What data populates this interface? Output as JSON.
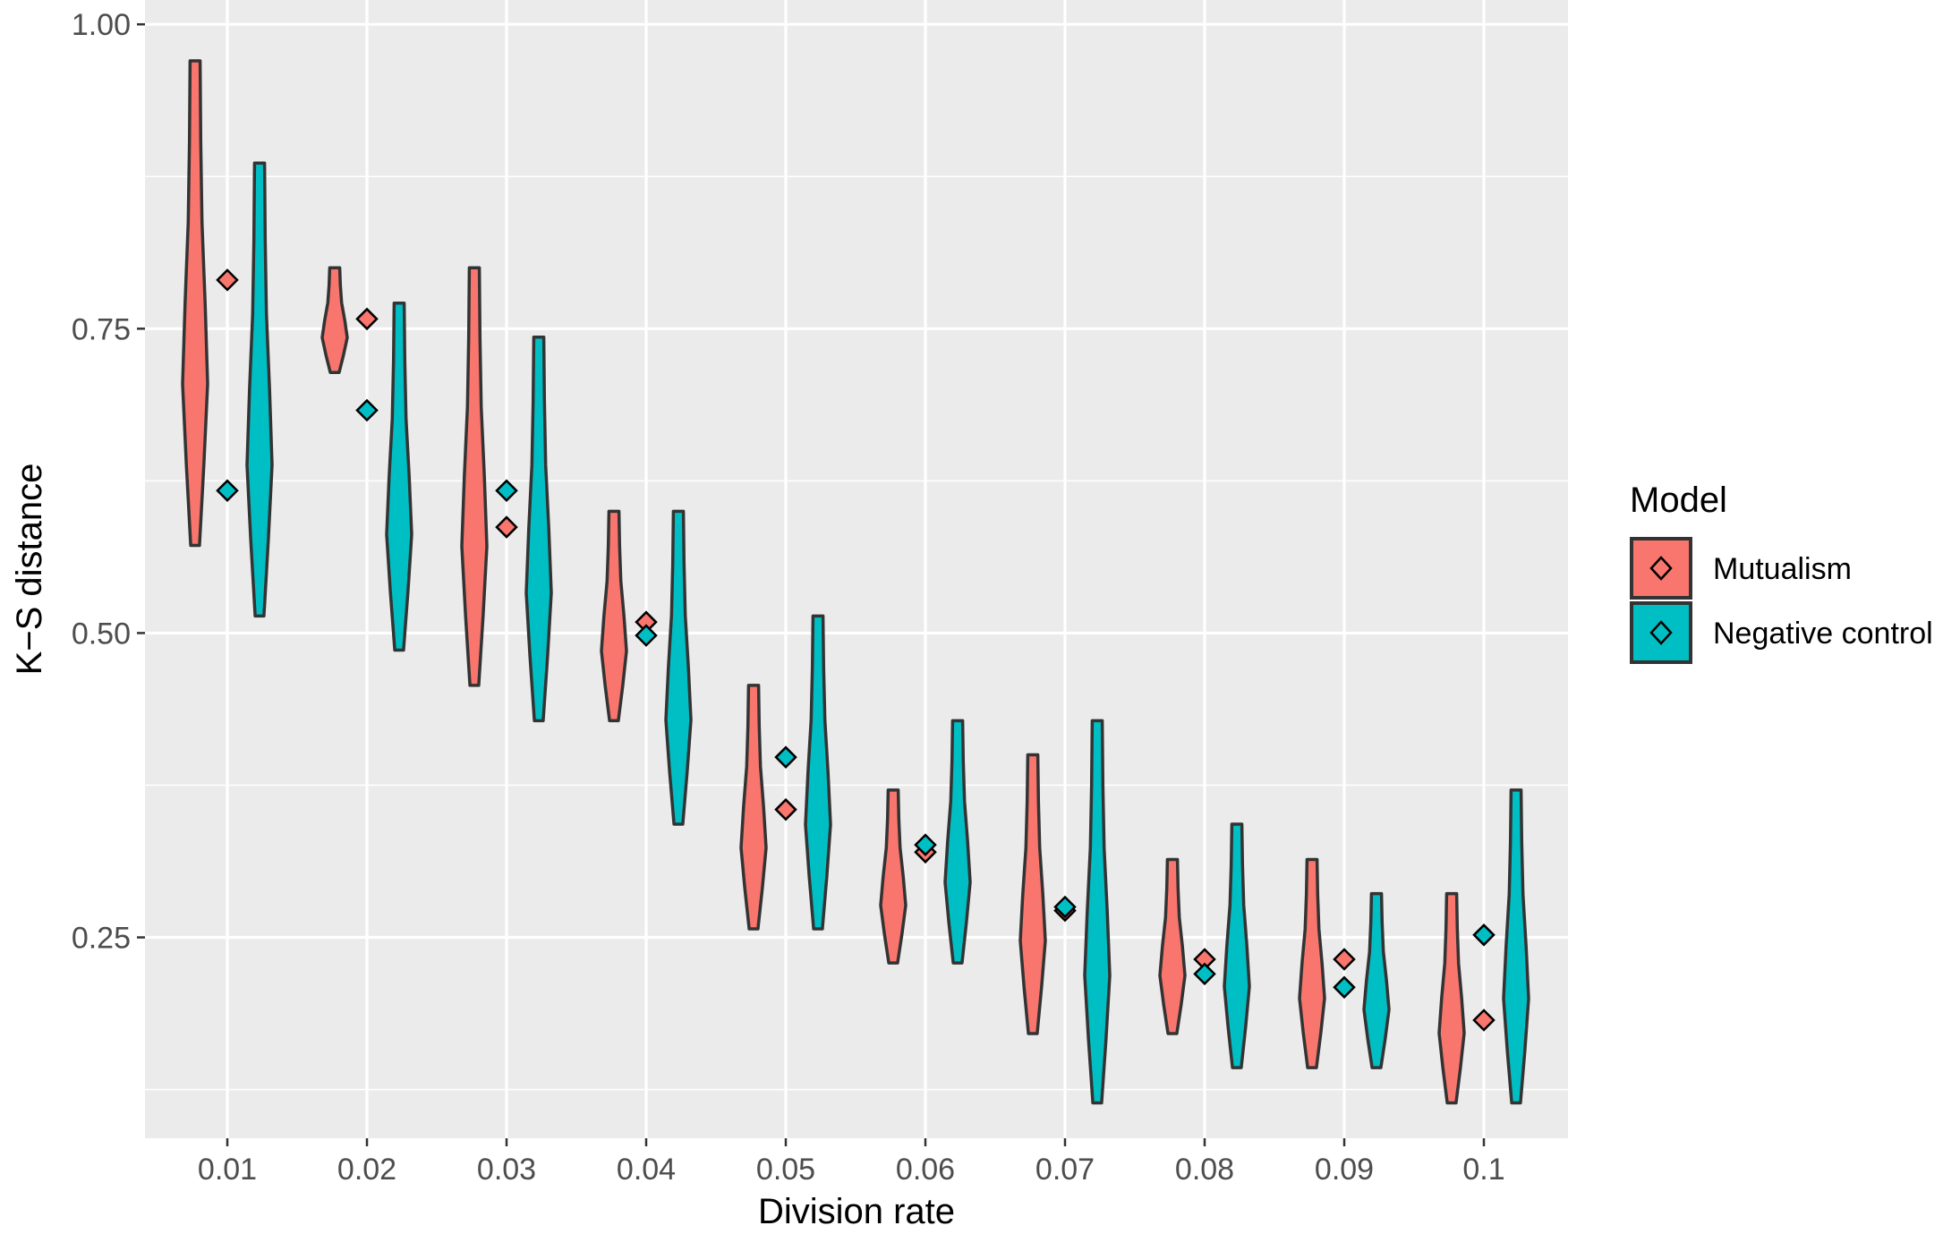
{
  "chart_data": {
    "type": "violin",
    "title": "",
    "xlabel": "Division rate",
    "ylabel": "K−S distance",
    "categories": [
      "0.01",
      "0.02",
      "0.03",
      "0.04",
      "0.05",
      "0.06",
      "0.07",
      "0.08",
      "0.09",
      "0.1"
    ],
    "ylim": [
      0.085,
      1.02
    ],
    "yticks": [
      0.25,
      0.5,
      0.75,
      1.0
    ],
    "ytick_labels": [
      "0.25",
      "0.50",
      "0.75",
      "1.00"
    ],
    "grid": true,
    "legend": {
      "title": "Model",
      "placement": "right",
      "entries": [
        "Mutualism",
        "Negative control"
      ]
    },
    "series": [
      {
        "name": "Mutualism",
        "color": "#F8766D",
        "violin_range": [
          [
            0.572,
            0.97
          ],
          [
            0.714,
            0.8
          ],
          [
            0.457,
            0.8
          ],
          [
            0.428,
            0.6
          ],
          [
            0.257,
            0.457
          ],
          [
            0.229,
            0.371
          ],
          [
            0.171,
            0.4
          ],
          [
            0.171,
            0.314
          ],
          [
            0.143,
            0.314
          ],
          [
            0.114,
            0.286
          ]
        ],
        "marker_values": [
          0.79,
          0.758,
          0.587,
          0.509,
          0.355,
          0.32,
          0.272,
          0.232,
          0.232,
          0.182
        ]
      },
      {
        "name": "Negative control",
        "color": "#00BFC4",
        "violin_range": [
          [
            0.514,
            0.886
          ],
          [
            0.486,
            0.771
          ],
          [
            0.428,
            0.743
          ],
          [
            0.343,
            0.6
          ],
          [
            0.257,
            0.514
          ],
          [
            0.229,
            0.428
          ],
          [
            0.114,
            0.428
          ],
          [
            0.143,
            0.343
          ],
          [
            0.143,
            0.286
          ],
          [
            0.114,
            0.371
          ]
        ],
        "marker_values": [
          0.617,
          0.683,
          0.617,
          0.498,
          0.398,
          0.326,
          0.275,
          0.22,
          0.209,
          0.252
        ]
      }
    ]
  }
}
